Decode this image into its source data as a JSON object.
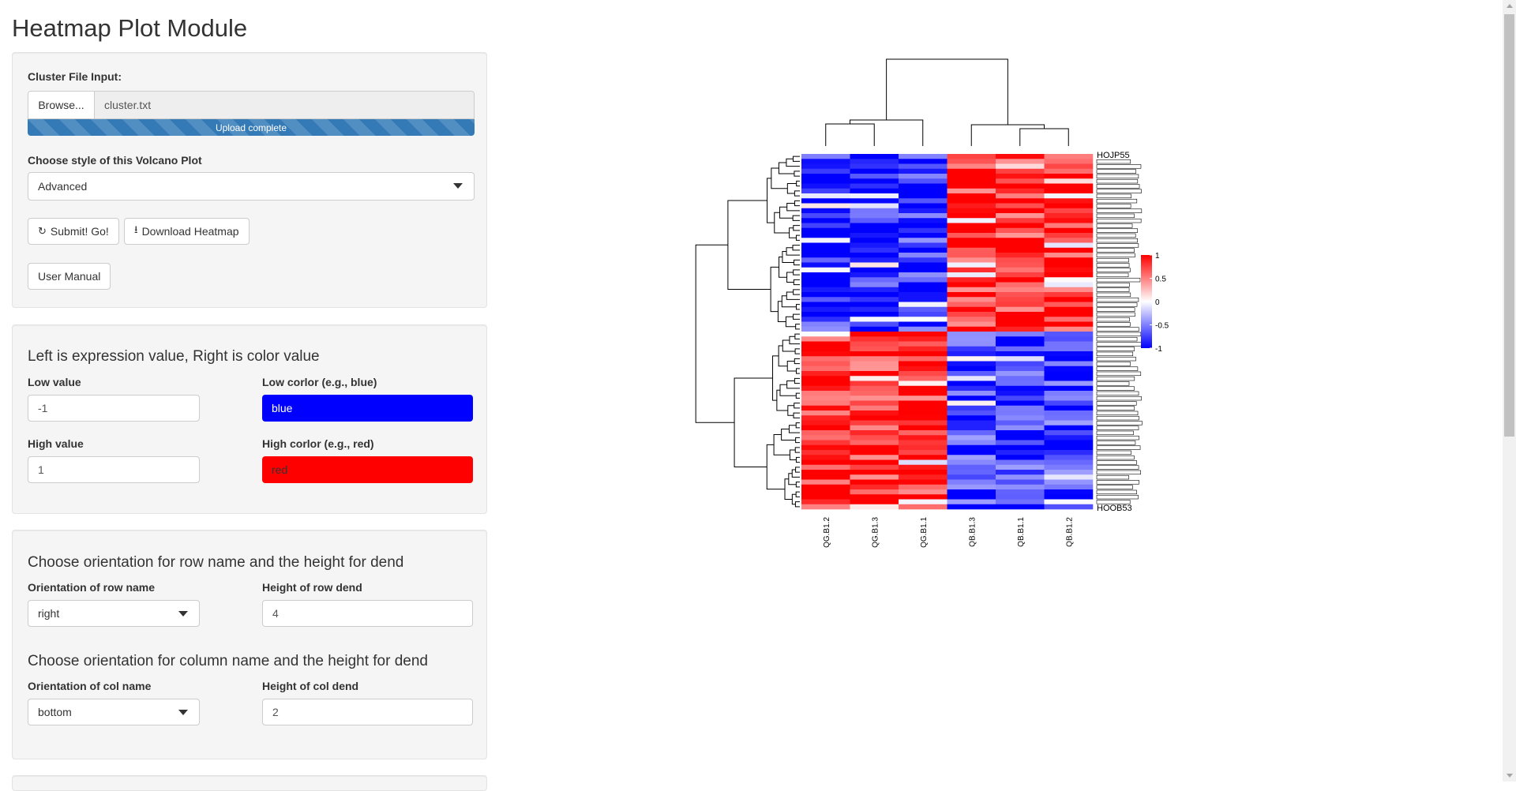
{
  "page_title": "Heatmap Plot Module",
  "panel1": {
    "file_label": "Cluster File Input:",
    "browse_label": "Browse...",
    "file_name": "cluster.txt",
    "progress_label": "Upload complete",
    "progress_fraction": 1.0,
    "style_label": "Choose style of this Volcano Plot",
    "style_value": "Advanced",
    "submit_label": "Submit! Go!",
    "download_label": "Download Heatmap",
    "manual_label": "User Manual"
  },
  "panel2": {
    "heading": "Left is expression value, Right is color value",
    "low_value_label": "Low value",
    "low_value": "-1",
    "low_color_label": "Low corlor (e.g., blue)",
    "low_color": "blue",
    "high_value_label": "High value",
    "high_value": "1",
    "high_color_label": "High corlor (e.g., red)",
    "high_color": "red",
    "low_color_hex": "#0000ff",
    "high_color_hex": "#ff0000"
  },
  "panel3": {
    "row_heading": "Choose orientation for row name and the height for dend",
    "row_orient_label": "Orientation of row name",
    "row_orient_value": "right",
    "row_dend_label": "Height of row dend",
    "row_dend_value": "4",
    "col_heading": "Choose orientation for column name and the height for dend",
    "col_orient_label": "Orientation of col name",
    "col_orient_value": "bottom",
    "col_dend_label": "Height of col dend",
    "col_dend_value": "2"
  },
  "icons": {
    "refresh": "refresh-icon",
    "download": "download-icon",
    "caret": "chevron-down-icon"
  },
  "chart_data": {
    "type": "heatmap",
    "columns": [
      "QG.B1.2",
      "QG.B1.3",
      "QG.B1.1",
      "QB.B1.3",
      "QB.B1.1",
      "QB.B1.2"
    ],
    "n_rows": 72,
    "row_label_top": "HOJP55",
    "row_label_bottom": "HOOB53",
    "color_scale": {
      "min": -1,
      "max": 1,
      "low": "#0000ff",
      "mid": "#ffffff",
      "high": "#ff0000"
    },
    "legend_ticks": [
      "1",
      "0.5",
      "0",
      "-0.5",
      "-1"
    ],
    "legend_tick_values": [
      1,
      0.5,
      0,
      -0.5,
      -1
    ]
  }
}
